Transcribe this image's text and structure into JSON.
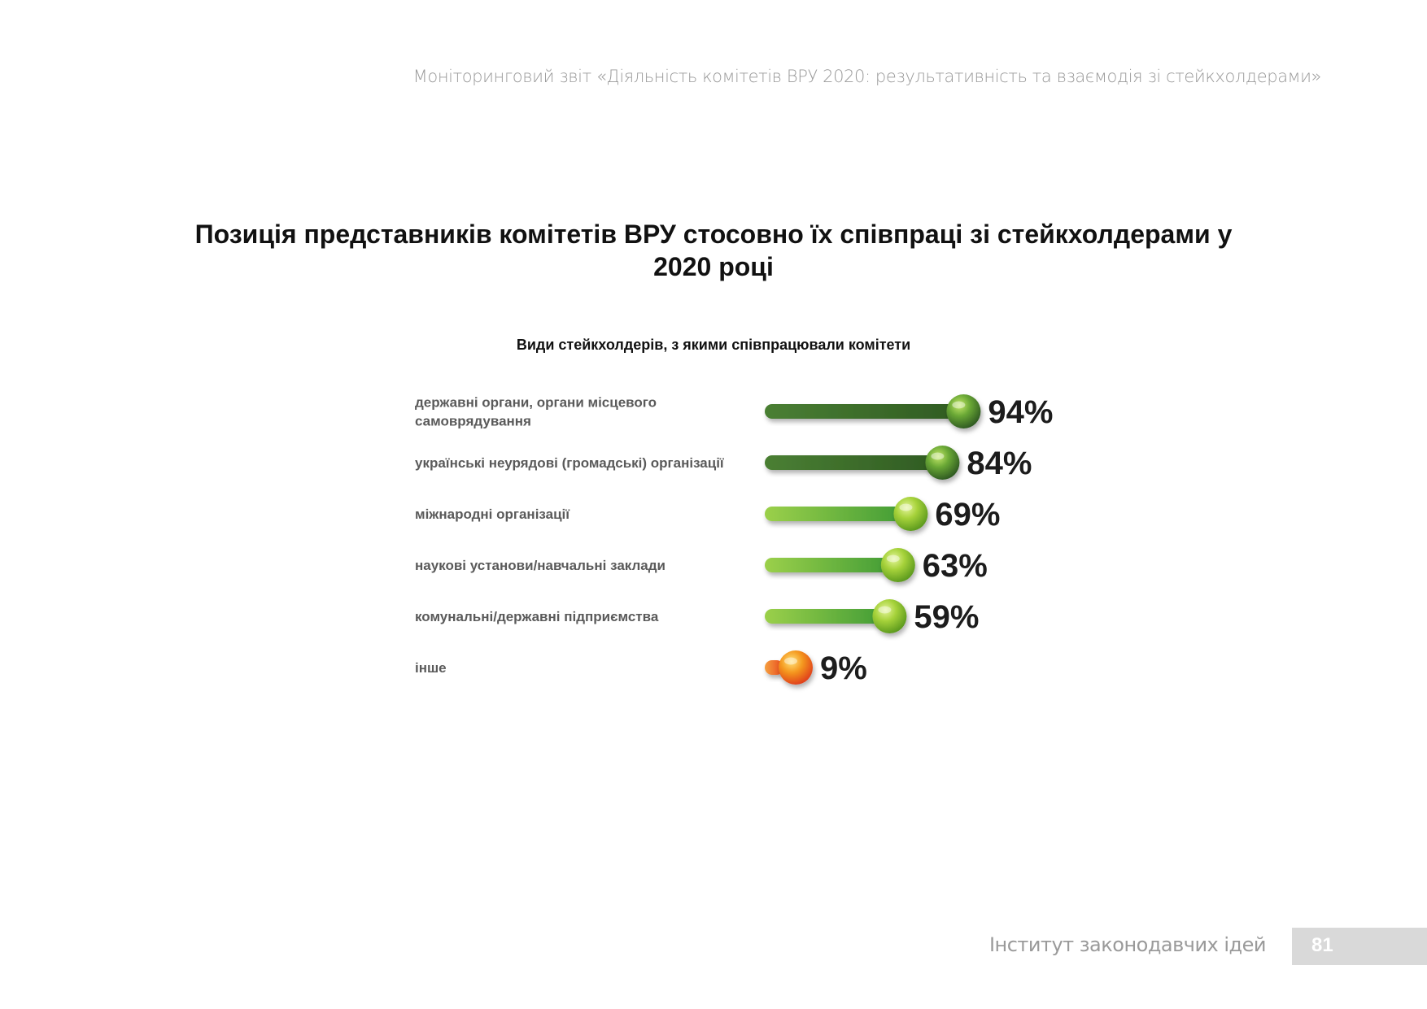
{
  "header": {
    "text": "Моніторинговий звіт «Діяльність комітетів ВРУ 2020: результативність та взаємодія зі стейкхолдерами»"
  },
  "title": "Позиція представників комітетів ВРУ стосовно їх співпраці зі стейкхолдерами у 2020 році",
  "chart_data": {
    "type": "bar",
    "orientation": "horizontal",
    "title": "Види стейкхолдерів, з якими співпрацювали комітети",
    "categories": [
      "державні органи, органи місцевого самоврядування",
      "українські неурядові (громадські) організації",
      "міжнародні організації",
      "наукові установи/навчальні заклади",
      "комунальні/державні підприємства",
      "інше"
    ],
    "category_lines": [
      [
        "державні органи, органи місцевого",
        "самоврядування"
      ],
      [
        "українські неурядові (громадські) організації"
      ],
      [
        "міжнародні організації"
      ],
      [
        "наукові установи/навчальні заклади"
      ],
      [
        "комунальні/державні підприємства"
      ],
      [
        "інше"
      ]
    ],
    "values": [
      94,
      84,
      69,
      63,
      59,
      9
    ],
    "value_labels": [
      "94%",
      "84%",
      "69%",
      "63%",
      "59%",
      "9%"
    ],
    "unit": "%",
    "xlim": [
      0,
      100
    ],
    "colors": {
      "dark_green": "#3d6b2c",
      "mid_green": "#4f9a2e",
      "light_green": "#8ec63f",
      "orange": "#f08a1c",
      "red_orange": "#e8461c"
    }
  },
  "footer": {
    "org": "Інститут законодавчих ідей",
    "page": "81"
  }
}
